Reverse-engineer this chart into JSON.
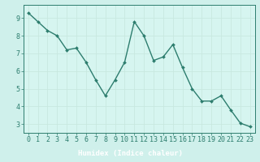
{
  "x": [
    0,
    1,
    2,
    3,
    4,
    5,
    6,
    7,
    8,
    9,
    10,
    11,
    12,
    13,
    14,
    15,
    16,
    17,
    18,
    19,
    20,
    21,
    22,
    23
  ],
  "y": [
    9.3,
    8.8,
    8.3,
    8.0,
    7.2,
    7.3,
    6.5,
    5.5,
    4.6,
    5.5,
    6.5,
    8.8,
    8.0,
    6.6,
    6.8,
    7.5,
    6.2,
    5.0,
    4.3,
    4.3,
    4.6,
    3.8,
    3.05,
    2.85
  ],
  "line_color": "#2d7d6e",
  "marker": "D",
  "marker_size": 2.0,
  "bg_color": "#cff0eb",
  "plot_bg_color": "#d6f5f0",
  "grid_color": "#c8e8e0",
  "axis_color": "#2d7d6e",
  "xlabel": "Humidex (Indice chaleur)",
  "xlabel_bg": "#4a9e8e",
  "xlim": [
    -0.5,
    23.5
  ],
  "ylim": [
    2.5,
    9.75
  ],
  "yticks": [
    3,
    4,
    5,
    6,
    7,
    8,
    9
  ],
  "xticks": [
    0,
    1,
    2,
    3,
    4,
    5,
    6,
    7,
    8,
    9,
    10,
    11,
    12,
    13,
    14,
    15,
    16,
    17,
    18,
    19,
    20,
    21,
    22,
    23
  ],
  "xlabel_fontsize": 6.5,
  "tick_fontsize": 6.0,
  "line_width": 1.0
}
